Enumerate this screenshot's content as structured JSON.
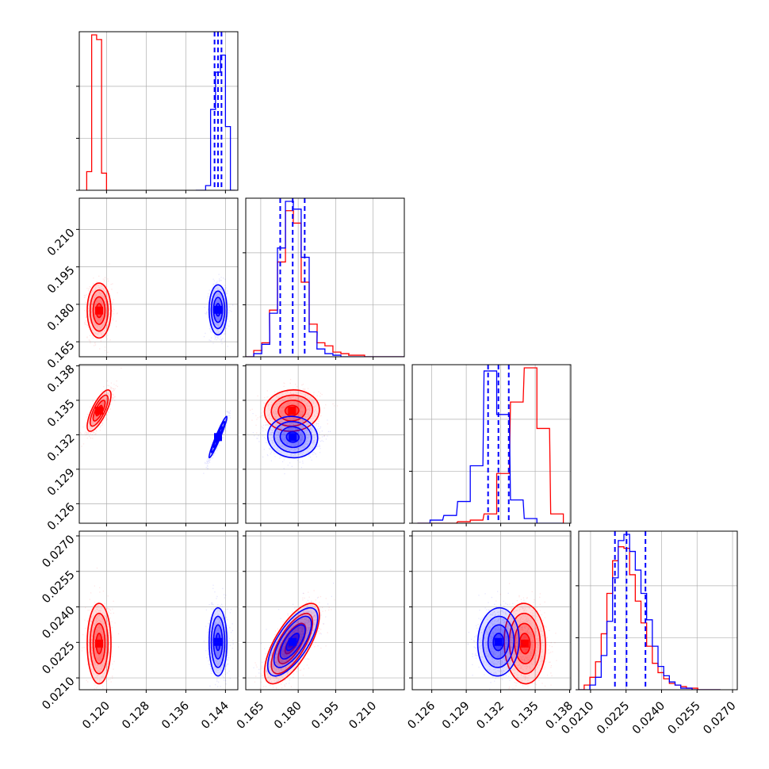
{
  "colors": {
    "series_a": "#ff0000",
    "series_b": "#0000ff",
    "grid": "#b0b0b0",
    "frame": "#000000"
  },
  "chart_data": {
    "type": "corner",
    "parameters": [
      {
        "range": [
          0.1145,
          0.1465
        ],
        "ticks": [
          0.12,
          0.128,
          0.136,
          0.144
        ],
        "tick_labels": [
          "0.120",
          "0.128",
          "0.136",
          "0.144"
        ]
      },
      {
        "range": [
          0.159,
          0.2225
        ],
        "ticks": [
          0.165,
          0.18,
          0.195,
          0.21
        ],
        "tick_labels": [
          "0.165",
          "0.180",
          "0.195",
          "0.210"
        ]
      },
      {
        "range": [
          0.1243,
          0.1381
        ],
        "ticks": [
          0.126,
          0.129,
          0.132,
          0.135,
          0.138
        ],
        "tick_labels": [
          "0.126",
          "0.129",
          "0.132",
          "0.135",
          "0.138"
        ]
      },
      {
        "range": [
          0.0205,
          0.0272
        ],
        "ticks": [
          0.021,
          0.0225,
          0.024,
          0.0255,
          0.027
        ],
        "tick_labels": [
          "0.0210",
          "0.0225",
          "0.0240",
          "0.0255",
          "0.0270"
        ]
      }
    ],
    "series": [
      {
        "key": "a",
        "color": "#ff0000",
        "means": [
          0.1185,
          0.1775,
          0.1341,
          0.02245
        ],
        "sds": [
          0.0012,
          0.0055,
          0.0009,
          0.00085
        ],
        "correlations": [
          [
            0,
            2,
            0.75
          ],
          [
            1,
            3,
            0.7
          ],
          [
            1,
            2,
            0.05
          ],
          [
            2,
            3,
            -0.05
          ]
        ],
        "histograms": [
          {
            "centers": [
              0.1165,
              0.1175,
              0.1185,
              0.1195
            ],
            "counts": [
              0.12,
              1.0,
              0.97,
              0.11
            ]
          },
          {
            "centers": [
              0.1606,
              0.1638,
              0.167,
              0.1701,
              0.1733,
              0.1765,
              0.1796,
              0.1828,
              0.186,
              0.1891,
              0.1923,
              0.1955,
              0.1987,
              0.2018,
              0.205,
              0.2082,
              0.2113,
              0.2145,
              0.2177,
              0.2208
            ],
            "counts": [
              0.0,
              0.04,
              0.09,
              0.3,
              0.61,
              0.94,
              0.86,
              0.48,
              0.21,
              0.09,
              0.07,
              0.03,
              0.02,
              0.01,
              0.01,
              0.0,
              0.0,
              0.0,
              0.0,
              0.0
            ]
          },
          {
            "centers": [
              0.1253,
              0.1264,
              0.1276,
              0.1288,
              0.1299,
              0.1311,
              0.1322,
              0.1334,
              0.1346,
              0.1357,
              0.1369
            ],
            "counts": [
              0.0,
              0.0,
              0.0,
              0.01,
              0.02,
              0.06,
              0.32,
              0.78,
              1.0,
              0.61,
              0.06
            ]
          },
          {
            "centers": [
              0.02061,
              0.02085,
              0.02109,
              0.02133,
              0.02157,
              0.02181,
              0.02205,
              0.02229,
              0.02253,
              0.02277,
              0.02301,
              0.02325,
              0.02349,
              0.02373,
              0.02397,
              0.02421,
              0.02445,
              0.02469,
              0.02493,
              0.02517,
              0.02541,
              0.02565,
              0.02589,
              0.02613,
              0.02637
            ],
            "counts": [
              0.0,
              0.03,
              0.08,
              0.18,
              0.36,
              0.62,
              0.83,
              0.92,
              0.91,
              0.74,
              0.57,
              0.43,
              0.28,
              0.17,
              0.11,
              0.07,
              0.04,
              0.03,
              0.02,
              0.01,
              0.01,
              0.0,
              0.0,
              0.0,
              0.0
            ]
          }
        ]
      },
      {
        "key": "b",
        "color": "#0000ff",
        "means": [
          0.1425,
          0.1778,
          0.1318,
          0.02252
        ],
        "sds": [
          0.0009,
          0.005,
          0.0009,
          0.00072
        ],
        "correlations": [
          [
            0,
            2,
            0.96
          ],
          [
            1,
            3,
            0.7
          ],
          [
            1,
            2,
            -0.05
          ],
          [
            2,
            3,
            0.05
          ]
        ],
        "histograms": [
          {
            "centers": [
              0.1385,
              0.1395,
              0.1405,
              0.1415,
              0.1425,
              0.1435,
              0.1445,
              0.1455
            ],
            "counts": [
              0.0,
              0.0,
              0.03,
              0.52,
              0.76,
              0.87,
              0.41,
              0.0
            ]
          },
          {
            "centers": [
              0.1606,
              0.1638,
              0.167,
              0.1701,
              0.1733,
              0.1765,
              0.1796,
              0.1828,
              0.186,
              0.1891,
              0.1923,
              0.1955,
              0.1987,
              0.2018,
              0.205,
              0.2082,
              0.2113,
              0.2145,
              0.2177,
              0.2208
            ],
            "counts": [
              0.0,
              0.02,
              0.08,
              0.28,
              0.7,
              1.0,
              0.95,
              0.64,
              0.16,
              0.05,
              0.02,
              0.01,
              0.0,
              0.0,
              0.0,
              0.0,
              0.0,
              0.0,
              0.0,
              0.0
            ]
          },
          {
            "centers": [
              0.1253,
              0.1264,
              0.1276,
              0.1288,
              0.1299,
              0.1311,
              0.1322,
              0.1334,
              0.1346,
              0.1357,
              0.1369
            ],
            "counts": [
              0.0,
              0.02,
              0.05,
              0.14,
              0.37,
              0.98,
              0.7,
              0.15,
              0.03,
              0.0,
              0.0
            ]
          },
          {
            "centers": [
              0.02061,
              0.02085,
              0.02109,
              0.02133,
              0.02157,
              0.02181,
              0.02205,
              0.02229,
              0.02253,
              0.02277,
              0.02301,
              0.02325,
              0.02349,
              0.02373,
              0.02397,
              0.02421,
              0.02445,
              0.02469,
              0.02493,
              0.02517,
              0.02541,
              0.02565,
              0.02589,
              0.02613,
              0.02637
            ],
            "counts": [
              0.0,
              0.0,
              0.03,
              0.08,
              0.22,
              0.44,
              0.72,
              0.96,
              1.0,
              0.89,
              0.77,
              0.62,
              0.45,
              0.28,
              0.15,
              0.09,
              0.05,
              0.03,
              0.01,
              0.01,
              0.0,
              0.0,
              0.0,
              0.0,
              0.0
            ]
          }
        ]
      }
    ],
    "quantile_lines": {
      "color": "#0000ff",
      "values": [
        [
          0.1418,
          0.1425,
          0.1432
        ],
        [
          0.1728,
          0.1778,
          0.1826
        ],
        [
          0.1309,
          0.1318,
          0.1327
        ],
        [
          0.02203,
          0.02252,
          0.02332
        ]
      ]
    },
    "grid": true,
    "diagonal_y_tick_count": 3
  }
}
